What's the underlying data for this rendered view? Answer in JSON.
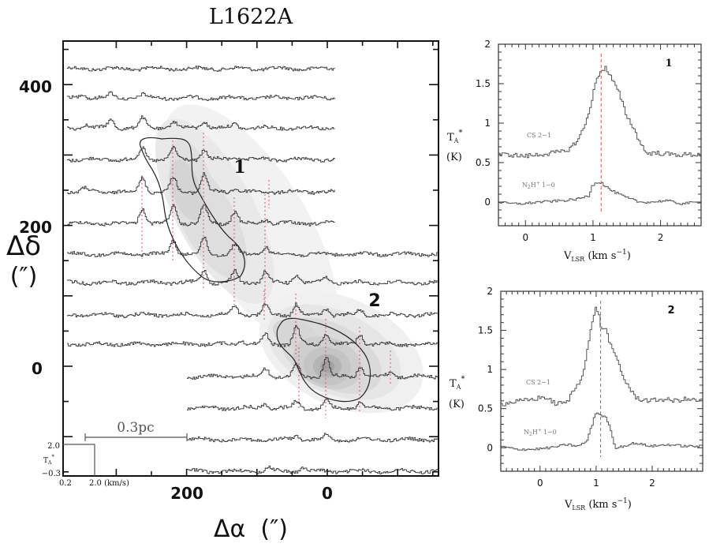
{
  "chart_data": [
    {
      "type": "map",
      "title": "L1622A",
      "xlabel": "Δα (″)",
      "ylabel": "Δδ (″)",
      "xlim": [
        300,
        -160
      ],
      "ylim": [
        -160,
        460
      ],
      "xticks": [
        200,
        0
      ],
      "yticks": [
        400,
        200,
        0
      ],
      "description": "Grid of CS 2-1 spectra overlaid on N2H+ 1-0 integrated-intensity greyscale with contour outlines around two cores",
      "spectra_rows_dec": [
        425,
        383,
        340,
        295,
        250,
        205,
        160,
        120,
        75,
        33,
        -10,
        -55,
        -100,
        -145
      ],
      "core_labels": [
        {
          "label": "1",
          "ra": 130,
          "dec": 285
        },
        {
          "label": "2",
          "ra": -55,
          "dec": 85
        }
      ],
      "scale_bar": {
        "label": "0.3pc"
      },
      "spectrum_scale_box": {
        "y_top_label": "2.0",
        "y_bottom_label": "−0.3",
        "y_axis_label": "T_A*",
        "x_left_label": "0.2",
        "x_right_label": "2.0 (km/s)"
      },
      "red_dotted_markers": "vertical dotted lines marking systemic velocity in each spectrum near the cores"
    },
    {
      "type": "line",
      "panel_label": "1",
      "xlabel": "V_LSR (km s^-1)",
      "ylabel": "T_A* (K)",
      "xlim": [
        -0.4,
        2.6
      ],
      "ylim": [
        -0.3,
        2.0
      ],
      "xticks": [
        "0",
        "1",
        "2"
      ],
      "yticks": [
        "0",
        "0.5",
        "1",
        "1.5",
        "2"
      ],
      "vline_velocity": 1.12,
      "series": [
        {
          "name": "CS 2-1",
          "x": [
            -0.4,
            -0.2,
            0.0,
            0.2,
            0.4,
            0.6,
            0.7,
            0.8,
            0.9,
            1.0,
            1.05,
            1.1,
            1.15,
            1.2,
            1.3,
            1.4,
            1.5,
            1.6,
            1.7,
            1.8,
            2.0,
            2.2,
            2.4,
            2.6
          ],
          "y": [
            0.6,
            0.6,
            0.58,
            0.6,
            0.62,
            0.64,
            0.7,
            0.8,
            0.98,
            1.3,
            1.5,
            1.62,
            1.68,
            1.7,
            1.55,
            1.38,
            1.12,
            0.96,
            0.78,
            0.62,
            0.62,
            0.6,
            0.6,
            0.6
          ]
        },
        {
          "name": "N2H+ 1-0",
          "x": [
            -0.4,
            -0.2,
            0.0,
            0.2,
            0.4,
            0.6,
            0.8,
            0.95,
            1.0,
            1.05,
            1.1,
            1.15,
            1.2,
            1.3,
            1.4,
            1.5,
            1.7,
            1.9,
            2.1,
            2.3,
            2.6
          ],
          "y": [
            0.0,
            -0.02,
            -0.02,
            0.0,
            0.01,
            0.02,
            0.04,
            0.08,
            0.2,
            0.25,
            0.25,
            0.24,
            0.2,
            0.14,
            0.1,
            0.06,
            0.0,
            0.0,
            0.02,
            -0.02,
            0.0
          ]
        }
      ]
    },
    {
      "type": "line",
      "panel_label": "2",
      "xlabel": "V_LSR (km s^-1)",
      "ylabel": "T_A* (K)",
      "xlim": [
        -0.7,
        2.9
      ],
      "ylim": [
        -0.3,
        2.0
      ],
      "xticks": [
        "0",
        "1",
        "2"
      ],
      "yticks": [
        "0",
        "0.5",
        "1",
        "1.5",
        "2"
      ],
      "vline_velocity": 1.08,
      "series": [
        {
          "name": "CS 2-1",
          "x": [
            -0.7,
            -0.5,
            -0.3,
            -0.1,
            0.1,
            0.3,
            0.5,
            0.6,
            0.7,
            0.8,
            0.9,
            0.95,
            1.0,
            1.05,
            1.1,
            1.2,
            1.3,
            1.4,
            1.5,
            1.6,
            1.7,
            1.8,
            2.0,
            2.2,
            2.4,
            2.6,
            2.9
          ],
          "y": [
            0.55,
            0.58,
            0.6,
            0.62,
            0.65,
            0.56,
            0.58,
            0.72,
            0.82,
            1.0,
            1.4,
            1.62,
            1.78,
            1.76,
            1.55,
            1.5,
            1.25,
            1.12,
            0.9,
            0.78,
            0.66,
            0.62,
            0.6,
            0.62,
            0.6,
            0.62,
            0.6
          ]
        },
        {
          "name": "N2H+ 1-0",
          "x": [
            -0.7,
            -0.4,
            -0.1,
            0.2,
            0.5,
            0.7,
            0.85,
            0.95,
            1.0,
            1.05,
            1.1,
            1.2,
            1.3,
            1.35,
            1.5,
            1.7,
            2.0,
            2.3,
            2.6,
            2.9
          ],
          "y": [
            0.02,
            -0.02,
            -0.02,
            0.0,
            0.04,
            0.02,
            0.08,
            0.3,
            0.44,
            0.44,
            0.42,
            0.38,
            0.18,
            0.0,
            0.02,
            0.06,
            0.02,
            0.04,
            0.02,
            0.02
          ]
        }
      ]
    }
  ],
  "main": {
    "title": "L1622A",
    "ytick_400": "400",
    "ytick_200": "200",
    "ytick_0": "0",
    "xtick_200": "200",
    "xtick_0": "0",
    "ylabel_delta": "Δδ",
    "ylabel_unit": "(″)",
    "xlabel": "Δα  (″)",
    "core1_label": "1",
    "core2_label": "2",
    "scale_bar_label": "0.3pc",
    "box_y_top": "2.0",
    "box_y_bottom": "−0.3",
    "box_ta": "T",
    "box_ta_sub": "A",
    "box_ta_sup": "*",
    "box_x_left": "0.2",
    "box_x_right": "2.0 (km/s)"
  },
  "panel1": {
    "label": "1",
    "ta": "T",
    "ta_sub": "A",
    "ta_sup": "*",
    "k": "(K)",
    "cs": "CS 2−1",
    "n2h_a": "N",
    "n2h_sub": "2",
    "n2h_b": "H",
    "n2h_sup": "+",
    "n2h_c": "1−0",
    "vlsr": "V",
    "vlsr_sub": "LSR",
    "vlsr_unit": " (km s",
    "vlsr_sup": "−1",
    "vlsr_close": ")",
    "yt": [
      "0",
      "0.5",
      "1",
      "1.5",
      "2"
    ],
    "xt": [
      "0",
      "1",
      "2"
    ]
  },
  "panel2": {
    "label": "2",
    "ta": "T",
    "ta_sub": "A",
    "ta_sup": "*",
    "k": "(K)",
    "cs": "CS 2−1",
    "n2h_a": "N",
    "n2h_sub": "2",
    "n2h_b": "H",
    "n2h_sup": "+",
    "n2h_c": "1−0",
    "vlsr": "V",
    "vlsr_sub": "LSR",
    "vlsr_unit": " (km s",
    "vlsr_sup": "−1",
    "vlsr_close": ")",
    "yt": [
      "0",
      "0.5",
      "1",
      "1.5",
      "2"
    ],
    "xt": [
      "0",
      "1",
      "2"
    ]
  },
  "colors": {
    "red_marker": "#e05050",
    "ink": "#111111",
    "grey_line": "#666666"
  }
}
